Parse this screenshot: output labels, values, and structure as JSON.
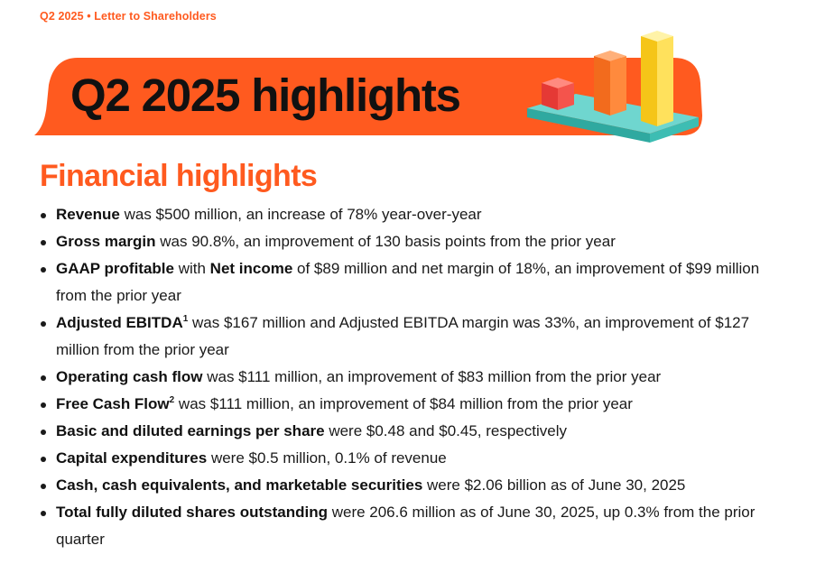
{
  "header": {
    "kicker": "Q2 2025 • Letter to Shareholders"
  },
  "banner": {
    "title": "Q2 2025 highlights",
    "background_color": "#ff5a1f",
    "illustration": "bar-chart-icon"
  },
  "section": {
    "title": "Financial highlights",
    "color": "#ff5a1f"
  },
  "highlights": [
    {
      "bold": "Revenue",
      "text": " was $500 million, an increase of 78% year-over-year"
    },
    {
      "bold": "Gross margin",
      "text": " was 90.8%, an improvement of 130 basis points from the prior year"
    },
    {
      "bold": "GAAP profitable",
      "mid": " with ",
      "bold2": "Net income",
      "text": " of $89 million and net margin of 18%, an improvement of $99 million from the prior year"
    },
    {
      "bold": "Adjusted EBITDA",
      "sup": "1",
      "text": " was $167 million and Adjusted EBITDA margin was 33%, an improvement of $127 million from the prior year"
    },
    {
      "bold": "Operating cash flow",
      "text": " was $111 million, an improvement of $83 million from the prior year"
    },
    {
      "bold": "Free Cash Flow",
      "sup": "2",
      "text": " was $111 million, an improvement of $84 million from the prior year"
    },
    {
      "bold": "Basic and diluted earnings per share",
      "text": " were $0.48 and $0.45, respectively"
    },
    {
      "bold": "Capital expenditures",
      "text": " were $0.5 million, 0.1% of revenue"
    },
    {
      "bold": "Cash, cash equivalents, and marketable securities",
      "text": " were $2.06 billion as of June 30, 2025"
    },
    {
      "bold": "Total fully diluted shares outstanding",
      "text": " were 206.6 million as of June 30, 2025, up 0.3% from the prior quarter"
    }
  ]
}
